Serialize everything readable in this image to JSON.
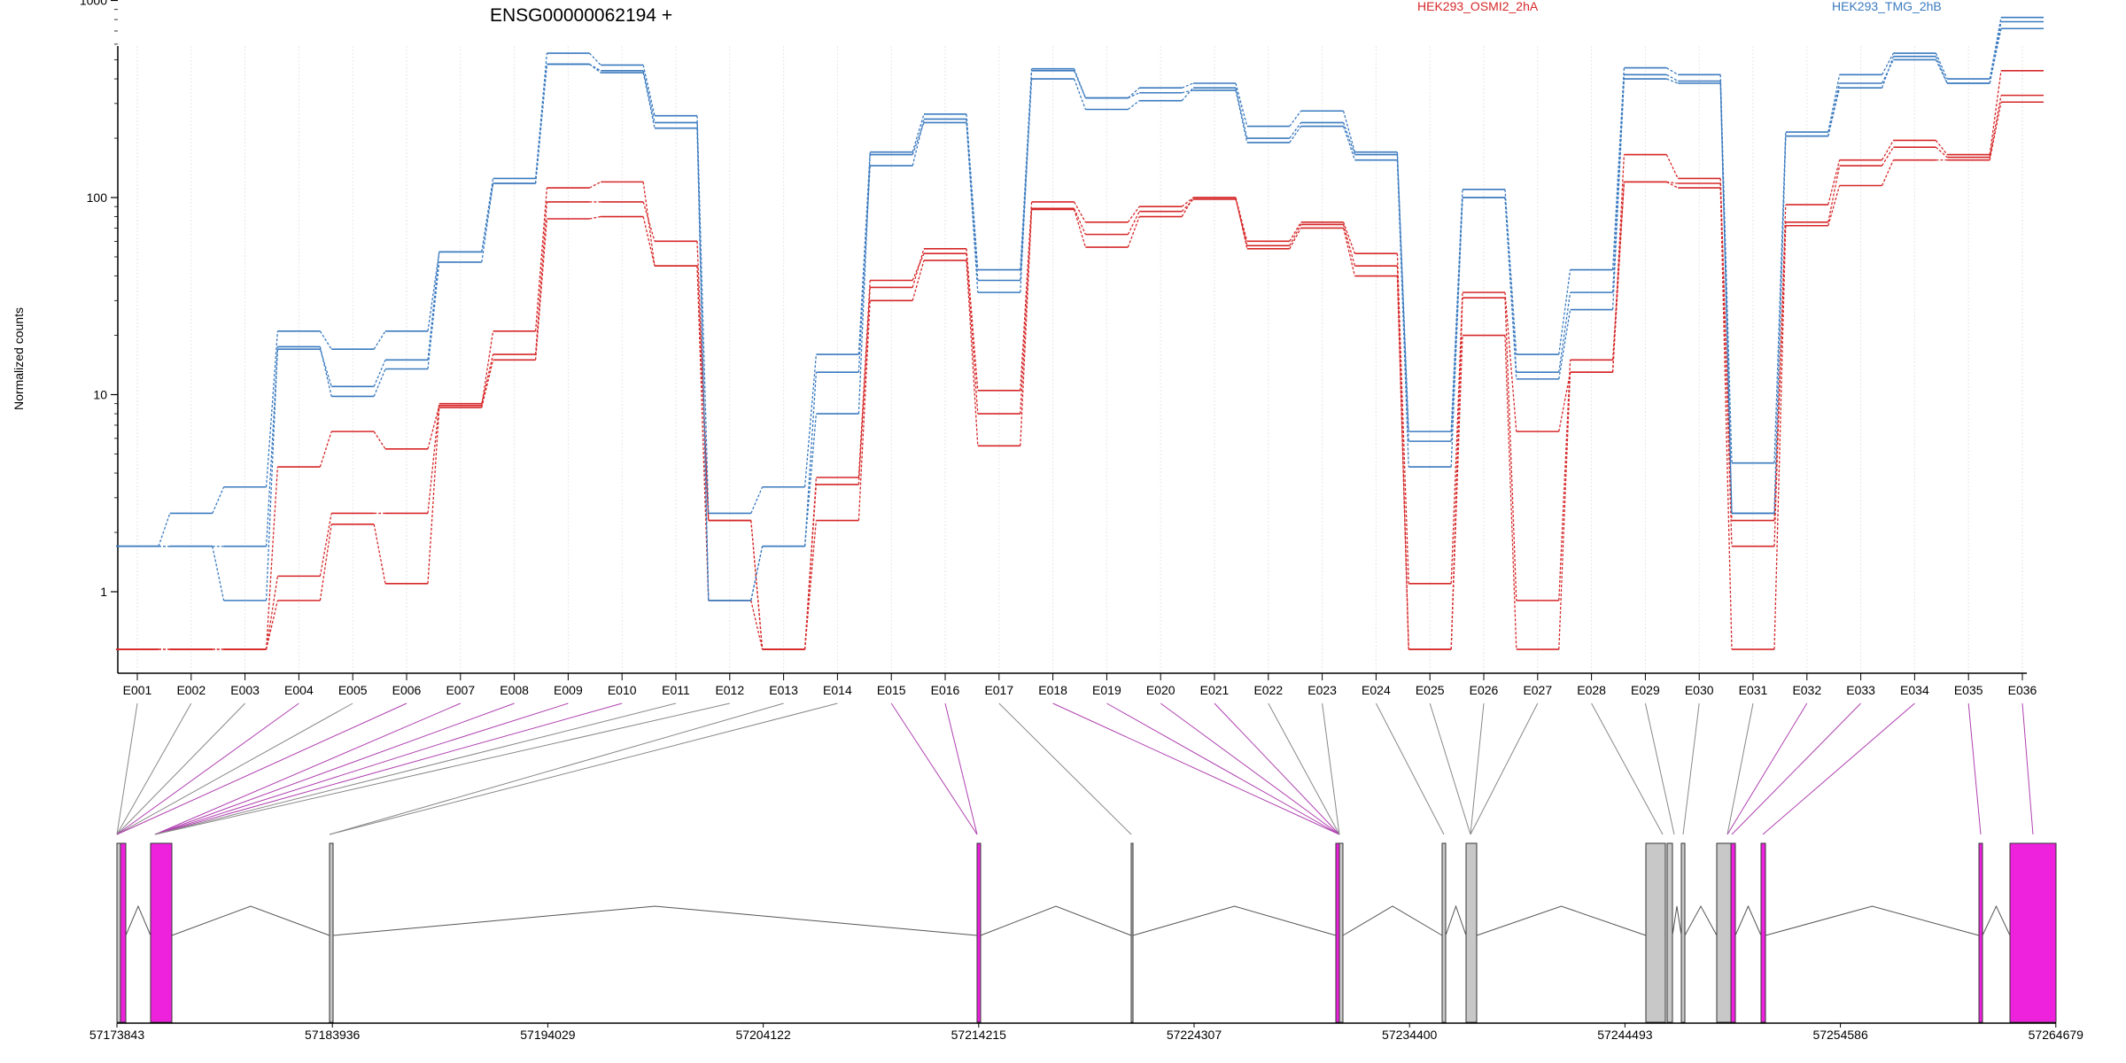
{
  "chart_data": {
    "type": "line",
    "title": "ENSG00000062194 +",
    "ylabel": "Normalized counts",
    "yscale": "log",
    "ylim": [
      0.4,
      1000
    ],
    "yticks": [
      "1",
      "10",
      "100",
      "1000"
    ],
    "grid": true,
    "legend_position": "top",
    "legend": [
      {
        "name": "HEK293_OSMI2_2hA",
        "color": "#d62728"
      },
      {
        "name": "HEK293_TMG_2hB",
        "color": "#3a7abf"
      }
    ],
    "categories": [
      "E001",
      "E002",
      "E003",
      "E004",
      "E005",
      "E006",
      "E007",
      "E008",
      "E009",
      "E010",
      "E011",
      "E012",
      "E013",
      "E014",
      "E015",
      "E016",
      "E017",
      "E018",
      "E019",
      "E020",
      "E021",
      "E022",
      "E023",
      "E024",
      "E025",
      "E026",
      "E027",
      "E028",
      "E029",
      "E030",
      "E031",
      "E032",
      "E033",
      "E034",
      "E035",
      "E036"
    ],
    "series": [
      {
        "group": "HEK293_OSMI2_2hA",
        "color": "#d62728",
        "values": [
          0.5,
          0.5,
          0.5,
          1.2,
          2.5,
          2.5,
          9,
          16,
          95,
          95,
          60,
          2.3,
          0.5,
          3.5,
          35,
          55,
          10.5,
          95,
          75,
          90,
          100,
          60,
          75,
          52,
          1.1,
          33,
          6.5,
          13,
          165,
          125,
          1.7,
          92,
          155,
          195,
          165,
          440
        ]
      },
      {
        "group": "HEK293_OSMI2_2hA",
        "color": "#d62728",
        "values": [
          0.5,
          0.5,
          0.5,
          4.3,
          6.5,
          5.3,
          8.8,
          21,
          112,
          120,
          45,
          2.3,
          0.5,
          3.8,
          38,
          52,
          8,
          88,
          65,
          85,
          98,
          57,
          73,
          45,
          0.5,
          31,
          0.9,
          15,
          120,
          118,
          2.3,
          75,
          145,
          180,
          160,
          330
        ]
      },
      {
        "group": "HEK293_OSMI2_2hA",
        "color": "#d62728",
        "values": [
          0.5,
          0.5,
          0.5,
          0.9,
          2.2,
          1.1,
          8.6,
          15,
          78,
          80,
          45,
          0.9,
          0.5,
          2.3,
          30,
          48,
          5.5,
          87,
          56,
          80,
          100,
          55,
          70,
          40,
          0.5,
          20,
          0.5,
          13,
          120,
          112,
          0.5,
          72,
          115,
          155,
          155,
          305
        ]
      },
      {
        "group": "HEK293_TMG_2hB",
        "color": "#3a7abf",
        "values": [
          1.7,
          2.5,
          3.4,
          21,
          17,
          21,
          53,
          125,
          540,
          470,
          260,
          2.5,
          3.4,
          16,
          170,
          265,
          43,
          450,
          320,
          360,
          380,
          230,
          275,
          170,
          6.5,
          110,
          16,
          43,
          455,
          420,
          4.5,
          215,
          420,
          540,
          400,
          820
        ]
      },
      {
        "group": "HEK293_TMG_2hB",
        "color": "#3a7abf",
        "values": [
          1.7,
          1.7,
          1.7,
          17,
          11,
          15,
          53,
          118,
          475,
          440,
          240,
          0.9,
          1.7,
          13,
          145,
          250,
          38,
          400,
          280,
          310,
          360,
          200,
          240,
          165,
          5.8,
          100,
          13,
          33,
          420,
          390,
          2.5,
          205,
          380,
          500,
          380,
          780
        ]
      },
      {
        "group": "HEK293_TMG_2hB",
        "color": "#3a7abf",
        "values": [
          1.7,
          1.7,
          0.9,
          17.5,
          9.8,
          13.5,
          47,
          118,
          475,
          430,
          225,
          0.9,
          1.7,
          8,
          165,
          240,
          33,
          440,
          320,
          340,
          350,
          190,
          230,
          155,
          4.3,
          100,
          12,
          27,
          400,
          380,
          2.5,
          205,
          360,
          520,
          380,
          720
        ]
      }
    ],
    "exon_annotation_colors": {
      "novel": "#ee22dd",
      "known": "#c8c8c8",
      "link_novel": "#b041b0",
      "link_known": "#888888"
    },
    "gene_model_xticks": [
      "57173843",
      "57183936",
      "57194029",
      "57204122",
      "57214215",
      "57224307",
      "57234400",
      "57244493",
      "57254586",
      "57264679"
    ]
  }
}
